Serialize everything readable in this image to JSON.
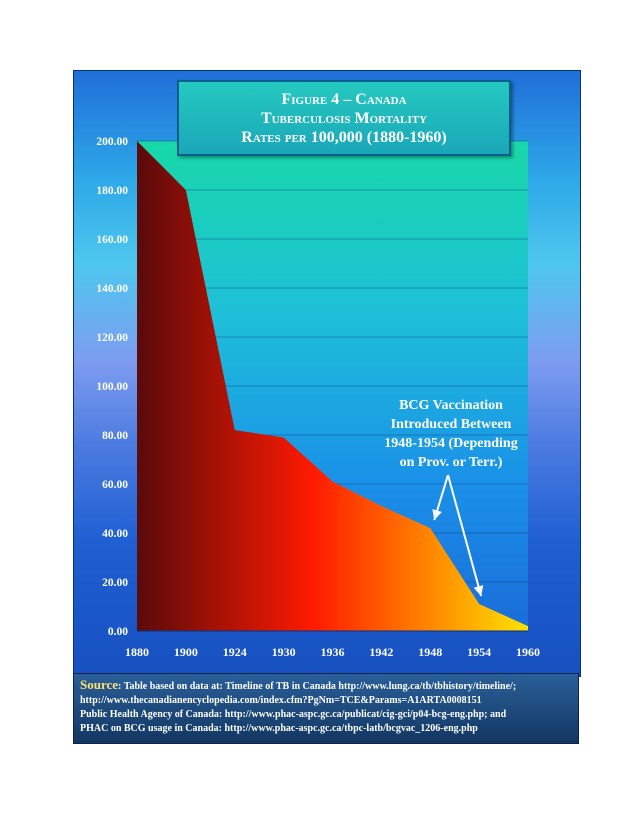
{
  "title": {
    "line1": "Figure 4 – Canada",
    "line2": "Tuberculosis Mortality",
    "line3a": "Rates per",
    "line3b": "100,000 (1880-1960)"
  },
  "annotation": {
    "lines": [
      "BCG Vaccination",
      "Introduced Between",
      "1948-1954 (Depending",
      "on Prov. or Terr.)"
    ]
  },
  "source": {
    "label": "Source",
    "line1": ": Table based on data at: Timeline of TB in Canada http://www.lung.ca/tb/tbhistory/timeline/;",
    "line2": " http://www.thecanadianencyclopedia.com/index.cfm?PgNm=TCE&Params=A1ARTA0008151",
    "line3": "Public Health Agency of Canada:  http://www.phac-aspc.gc.ca/publicat/cig-gci/p04-bcg-eng.php; and",
    "line4": " PHAC on BCG usage in Canada:  http://www.phac-aspc.gc.ca/tbpc-latb/bcgvac_1206-eng.php"
  },
  "colors": {
    "area_start": "#5a0a0a",
    "area_mid": "#ff1a00",
    "area_end": "#ffe200",
    "top_gradient": "#18d8a8"
  },
  "chart_data": {
    "type": "area",
    "categories": [
      "1880",
      "1900",
      "1924",
      "1930",
      "1936",
      "1942",
      "1948",
      "1954",
      "1960"
    ],
    "values": [
      200,
      180,
      82,
      79,
      61,
      51,
      42,
      11,
      2
    ],
    "y_ticks": [
      "0.00",
      "20.00",
      "40.00",
      "60.00",
      "80.00",
      "100.00",
      "120.00",
      "140.00",
      "160.00",
      "180.00",
      "200.00"
    ],
    "ylim": [
      0,
      200
    ],
    "grid": true,
    "legend": "none"
  }
}
